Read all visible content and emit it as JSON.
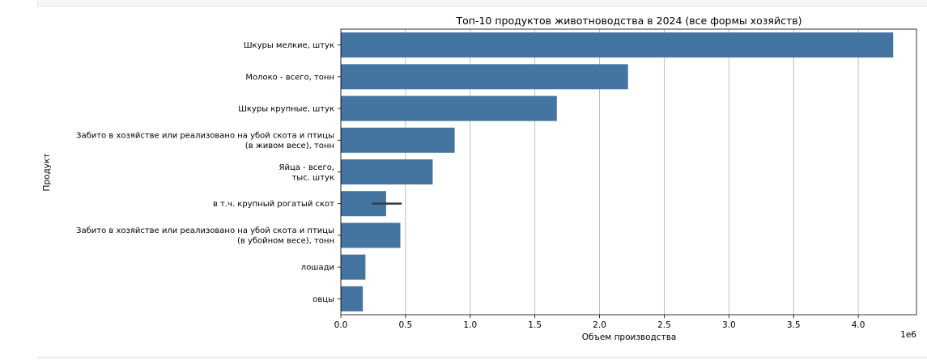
{
  "chart_data": {
    "type": "bar",
    "orientation": "horizontal",
    "title": "Топ-10 продуктов животноводства в 2024 (все формы хозяйств)",
    "xlabel": "Объем производства",
    "ylabel": "Продукт",
    "x_offset_label": "1e6",
    "xlim": [
      0,
      4.45
    ],
    "x_ticks": [
      "0.0",
      "0.5",
      "1.0",
      "1.5",
      "2.0",
      "2.5",
      "3.0",
      "3.5",
      "4.0"
    ],
    "grid": "vertical",
    "bar_color": "#4474a0",
    "categories": [
      [
        "Шкуры мелкие, штук"
      ],
      [
        "Молоко - всего, тонн"
      ],
      [
        "Шкуры крупные, штук"
      ],
      [
        "Забито в хозяйстве или реализовано на убой  скота и птицы",
        "(в живом весе), тонн"
      ],
      [
        "Яйца - всего,",
        "тыс. штук"
      ],
      [
        "в т.ч. крупный  рогатый скот"
      ],
      [
        "Забито в хозяйстве или реализовано на убой скота и птицы",
        "(в убойном весе), тонн"
      ],
      [
        "лошади"
      ],
      [
        "овцы"
      ]
    ],
    "values": [
      4.27,
      2.22,
      1.67,
      0.88,
      0.71,
      0.35,
      0.46,
      0.19,
      0.17
    ],
    "error_bars": [
      null,
      null,
      null,
      null,
      null,
      [
        0.24,
        0.47
      ],
      null,
      null,
      null
    ]
  }
}
